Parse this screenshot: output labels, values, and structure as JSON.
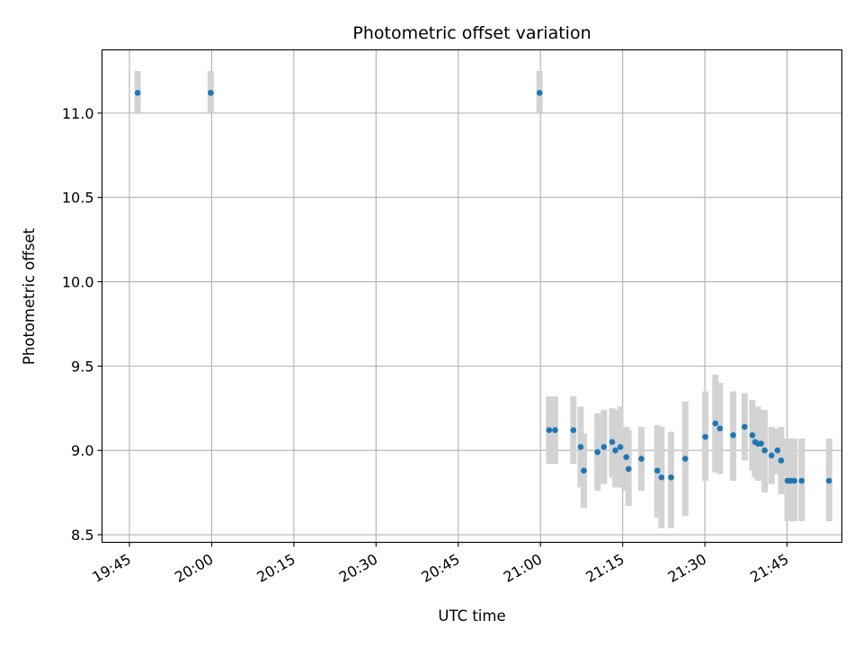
{
  "chart_data": {
    "type": "scatter",
    "title": "Photometric offset variation",
    "xlabel": "UTC time",
    "ylabel": "Photometric offset",
    "x_type": "time",
    "xlim": [
      "19:40",
      "21:55"
    ],
    "ylim": [
      8.455,
      11.375
    ],
    "x_ticks": [
      "19:45",
      "20:00",
      "20:15",
      "20:30",
      "20:45",
      "21:00",
      "21:15",
      "21:30",
      "21:45"
    ],
    "y_ticks": [
      "8.5",
      "9.0",
      "9.5",
      "10.0",
      "10.5",
      "11.0"
    ],
    "grid": true,
    "colors": {
      "marker": "#1f77b4",
      "error_bar": "#d3d3d3",
      "grid": "#b0b0b0"
    },
    "points": [
      {
        "t": "19:46:30",
        "y": 11.12,
        "lo": 11.0,
        "hi": 11.25
      },
      {
        "t": "19:59:50",
        "y": 11.12,
        "lo": 11.0,
        "hi": 11.25
      },
      {
        "t": "20:59:50",
        "y": 11.12,
        "lo": 11.0,
        "hi": 11.25
      },
      {
        "t": "21:01:35",
        "y": 9.12,
        "lo": 8.92,
        "hi": 9.32
      },
      {
        "t": "21:02:40",
        "y": 9.12,
        "lo": 8.92,
        "hi": 9.32
      },
      {
        "t": "21:06:00",
        "y": 9.12,
        "lo": 8.92,
        "hi": 9.32
      },
      {
        "t": "21:07:20",
        "y": 9.02,
        "lo": 8.78,
        "hi": 9.26
      },
      {
        "t": "21:07:55",
        "y": 8.88,
        "lo": 8.66,
        "hi": 9.1
      },
      {
        "t": "21:10:25",
        "y": 8.99,
        "lo": 8.76,
        "hi": 9.22
      },
      {
        "t": "21:11:35",
        "y": 9.02,
        "lo": 8.8,
        "hi": 9.24
      },
      {
        "t": "21:13:05",
        "y": 9.05,
        "lo": 8.84,
        "hi": 9.25
      },
      {
        "t": "21:13:40",
        "y": 9.0,
        "lo": 8.78,
        "hi": 9.24
      },
      {
        "t": "21:14:35",
        "y": 9.02,
        "lo": 8.78,
        "hi": 9.26
      },
      {
        "t": "21:15:40",
        "y": 8.96,
        "lo": 8.76,
        "hi": 9.14
      },
      {
        "t": "21:16:05",
        "y": 8.89,
        "lo": 8.67,
        "hi": 9.12
      },
      {
        "t": "21:18:25",
        "y": 8.95,
        "lo": 8.76,
        "hi": 9.14
      },
      {
        "t": "21:21:20",
        "y": 8.88,
        "lo": 8.6,
        "hi": 9.15
      },
      {
        "t": "21:22:05",
        "y": 8.84,
        "lo": 8.54,
        "hi": 9.14
      },
      {
        "t": "21:23:50",
        "y": 8.84,
        "lo": 8.54,
        "hi": 9.11
      },
      {
        "t": "21:26:25",
        "y": 8.95,
        "lo": 8.61,
        "hi": 9.29
      },
      {
        "t": "21:30:05",
        "y": 9.08,
        "lo": 8.82,
        "hi": 9.35
      },
      {
        "t": "21:31:55",
        "y": 9.16,
        "lo": 8.87,
        "hi": 9.45
      },
      {
        "t": "21:32:45",
        "y": 9.13,
        "lo": 8.86,
        "hi": 9.4
      },
      {
        "t": "21:35:10",
        "y": 9.09,
        "lo": 8.82,
        "hi": 9.35
      },
      {
        "t": "21:37:15",
        "y": 9.14,
        "lo": 8.94,
        "hi": 9.34
      },
      {
        "t": "21:38:40",
        "y": 9.09,
        "lo": 8.88,
        "hi": 9.3
      },
      {
        "t": "21:39:10",
        "y": 9.05,
        "lo": 8.84,
        "hi": 9.26
      },
      {
        "t": "21:39:40",
        "y": 9.04,
        "lo": 8.82,
        "hi": 9.26
      },
      {
        "t": "21:40:15",
        "y": 9.04,
        "lo": 8.82,
        "hi": 9.24
      },
      {
        "t": "21:40:55",
        "y": 9.0,
        "lo": 8.75,
        "hi": 9.24
      },
      {
        "t": "21:42:10",
        "y": 8.97,
        "lo": 8.8,
        "hi": 9.14
      },
      {
        "t": "21:43:15",
        "y": 9.0,
        "lo": 8.86,
        "hi": 9.13
      },
      {
        "t": "21:43:55",
        "y": 8.94,
        "lo": 8.74,
        "hi": 9.14
      },
      {
        "t": "21:45:05",
        "y": 8.82,
        "lo": 8.58,
        "hi": 9.07
      },
      {
        "t": "21:45:40",
        "y": 8.82,
        "lo": 8.58,
        "hi": 9.07
      },
      {
        "t": "21:46:20",
        "y": 8.82,
        "lo": 8.58,
        "hi": 9.07
      },
      {
        "t": "21:47:40",
        "y": 8.82,
        "lo": 8.58,
        "hi": 9.07
      },
      {
        "t": "21:52:40",
        "y": 8.82,
        "lo": 8.58,
        "hi": 9.07
      }
    ]
  }
}
